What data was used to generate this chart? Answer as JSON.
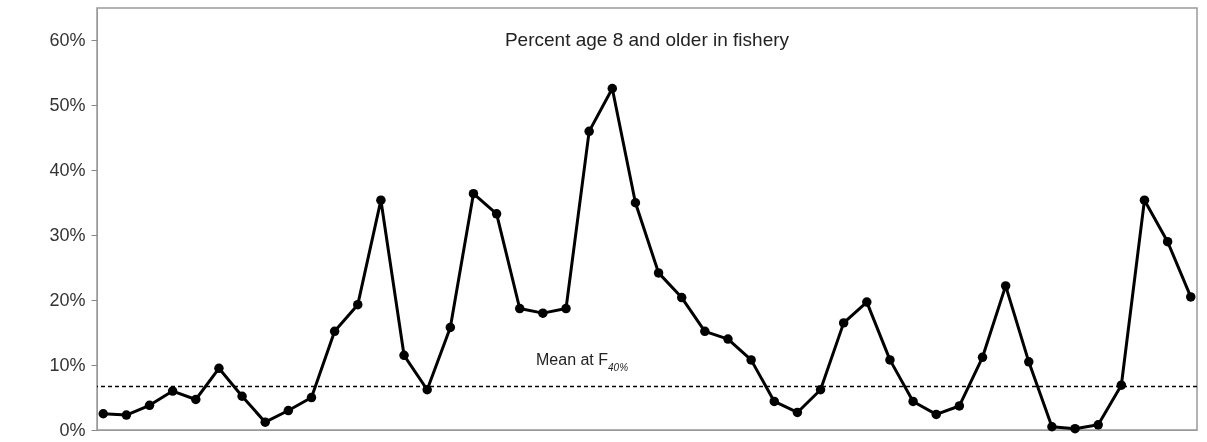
{
  "chart_data": {
    "type": "line",
    "title": "Percent age 8 and older in fishery",
    "categories": [
      null,
      null,
      null,
      null,
      null,
      null,
      null,
      null,
      null,
      null,
      null,
      null,
      null,
      null,
      null,
      null,
      null,
      null,
      null,
      null,
      null,
      null,
      null,
      null,
      null,
      null,
      null,
      null,
      null,
      null,
      null,
      null,
      null,
      null,
      null,
      null,
      null,
      null,
      null,
      null,
      null,
      null,
      null,
      null,
      null,
      null,
      null,
      null
    ],
    "series": [
      {
        "color": "#000000",
        "values": [
          2.5,
          2.3,
          3.8,
          6.0,
          4.7,
          9.5,
          5.2,
          1.2,
          3.0,
          5.0,
          15.2,
          19.3,
          35.4,
          11.5,
          6.2,
          15.8,
          36.4,
          33.3,
          18.7,
          18.0,
          18.7,
          46.0,
          52.6,
          35.0,
          24.2,
          20.4,
          15.2,
          14.0,
          10.8,
          4.4,
          2.7,
          6.2,
          16.5,
          19.7,
          10.8,
          4.4,
          2.4,
          3.7,
          11.2,
          22.2,
          10.5,
          0.5,
          0.2,
          0.8,
          6.9,
          35.4,
          29.0,
          20.5
        ]
      }
    ],
    "ylim": [
      0,
      65
    ],
    "yticks": [
      {
        "value": 0,
        "label": "0%"
      },
      {
        "value": 10,
        "label": "10%"
      },
      {
        "value": 20,
        "label": "20%"
      },
      {
        "value": 30,
        "label": "30%"
      },
      {
        "value": 40,
        "label": "40%"
      },
      {
        "value": 50,
        "label": "50%"
      },
      {
        "value": 60,
        "label": "60%"
      }
    ],
    "tick_labels": "y",
    "grid": false,
    "marker": "circle",
    "line_style": "solid",
    "ref_lines": [
      {
        "axis": "y",
        "value": 6.7,
        "label": "Mean at F$_{40%}$",
        "color": "#000000",
        "line_style": "dashed"
      }
    ]
  }
}
